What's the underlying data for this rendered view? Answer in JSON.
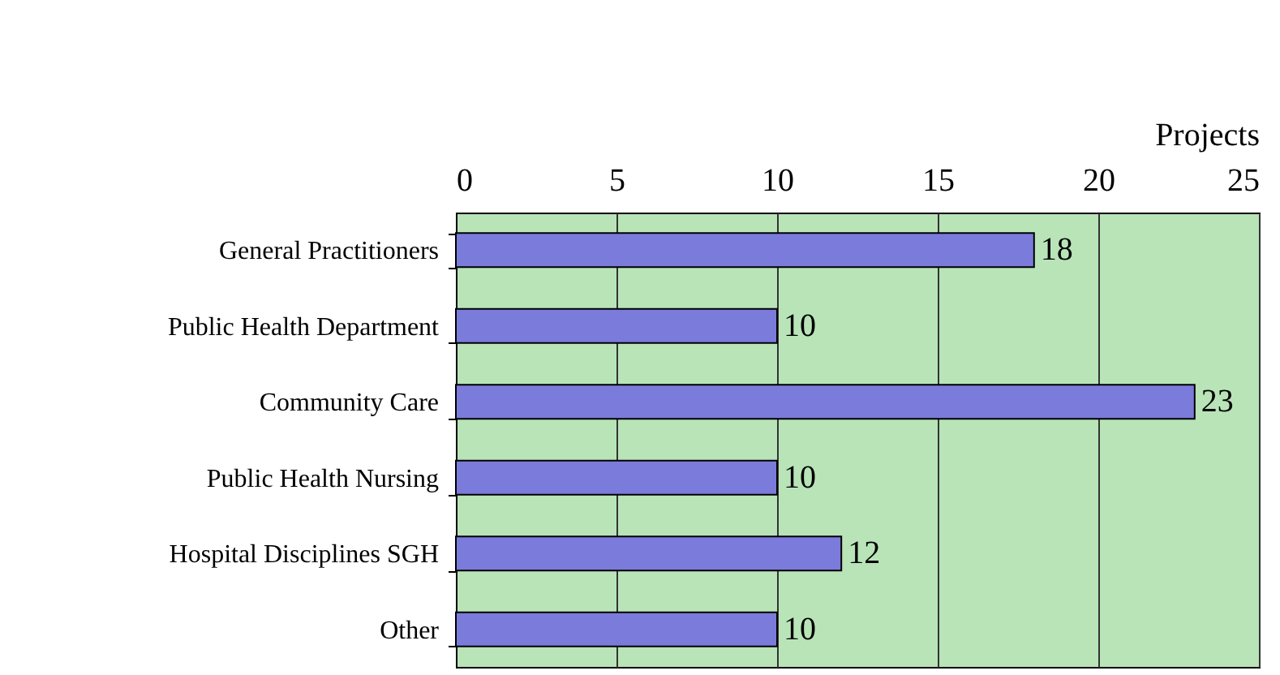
{
  "chart_data": {
    "type": "bar",
    "orientation": "horizontal",
    "xlabel": "Projects",
    "categories": [
      "General Practitioners",
      "Public Health Department",
      "Community Care",
      "Public Health Nursing",
      "Hospital Disciplines SGH",
      "Other"
    ],
    "values": [
      18,
      10,
      23,
      10,
      12,
      10
    ],
    "color": "#7b7bdb",
    "xlim": [
      0,
      25
    ],
    "xticks": [
      0,
      5,
      10,
      15,
      20,
      25
    ],
    "grid": "x",
    "data_labels": true
  }
}
